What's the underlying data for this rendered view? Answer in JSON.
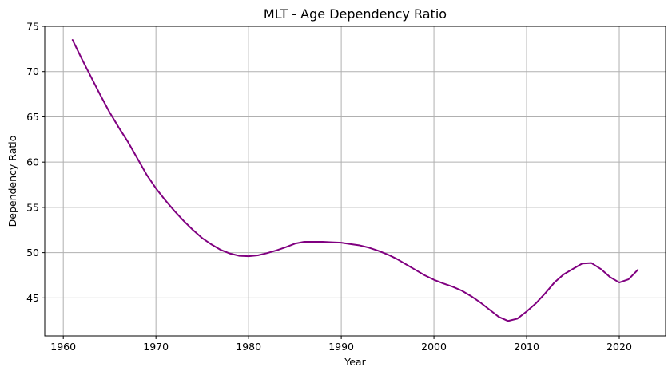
{
  "chart_data": {
    "type": "line",
    "title": "MLT - Age Dependency Ratio",
    "xlabel": "Year",
    "ylabel": "Dependency Ratio",
    "xlim": [
      1958,
      2025
    ],
    "ylim": [
      40.8,
      75
    ],
    "xticks": [
      1960,
      1970,
      1980,
      1990,
      2000,
      2010,
      2020
    ],
    "yticks": [
      45,
      50,
      55,
      60,
      65,
      70,
      75
    ],
    "grid": true,
    "line_color": "#800080",
    "x": [
      1961,
      1962,
      1963,
      1964,
      1965,
      1966,
      1967,
      1968,
      1969,
      1970,
      1971,
      1972,
      1973,
      1974,
      1975,
      1976,
      1977,
      1978,
      1979,
      1980,
      1981,
      1982,
      1983,
      1984,
      1985,
      1986,
      1987,
      1988,
      1989,
      1990,
      1991,
      1992,
      1993,
      1994,
      1995,
      1996,
      1997,
      1998,
      1999,
      2000,
      2001,
      2002,
      2003,
      2004,
      2005,
      2006,
      2007,
      2008,
      2009,
      2010,
      2011,
      2012,
      2013,
      2014,
      2015,
      2016,
      2017,
      2018,
      2019,
      2020,
      2021,
      2022
    ],
    "values": [
      73.5,
      71.4,
      69.4,
      67.4,
      65.5,
      63.8,
      62.2,
      60.4,
      58.6,
      57.1,
      55.8,
      54.6,
      53.5,
      52.5,
      51.6,
      50.9,
      50.3,
      49.9,
      49.65,
      49.6,
      49.7,
      49.95,
      50.25,
      50.6,
      51.0,
      51.2,
      51.2,
      51.2,
      51.15,
      51.1,
      50.95,
      50.8,
      50.55,
      50.2,
      49.8,
      49.3,
      48.7,
      48.1,
      47.5,
      47.0,
      46.6,
      46.25,
      45.8,
      45.2,
      44.5,
      43.7,
      42.9,
      42.45,
      42.7,
      43.5,
      44.4,
      45.5,
      46.7,
      47.6,
      48.2,
      48.8,
      48.85,
      48.2,
      47.3,
      46.7,
      47.05,
      48.1
    ]
  }
}
